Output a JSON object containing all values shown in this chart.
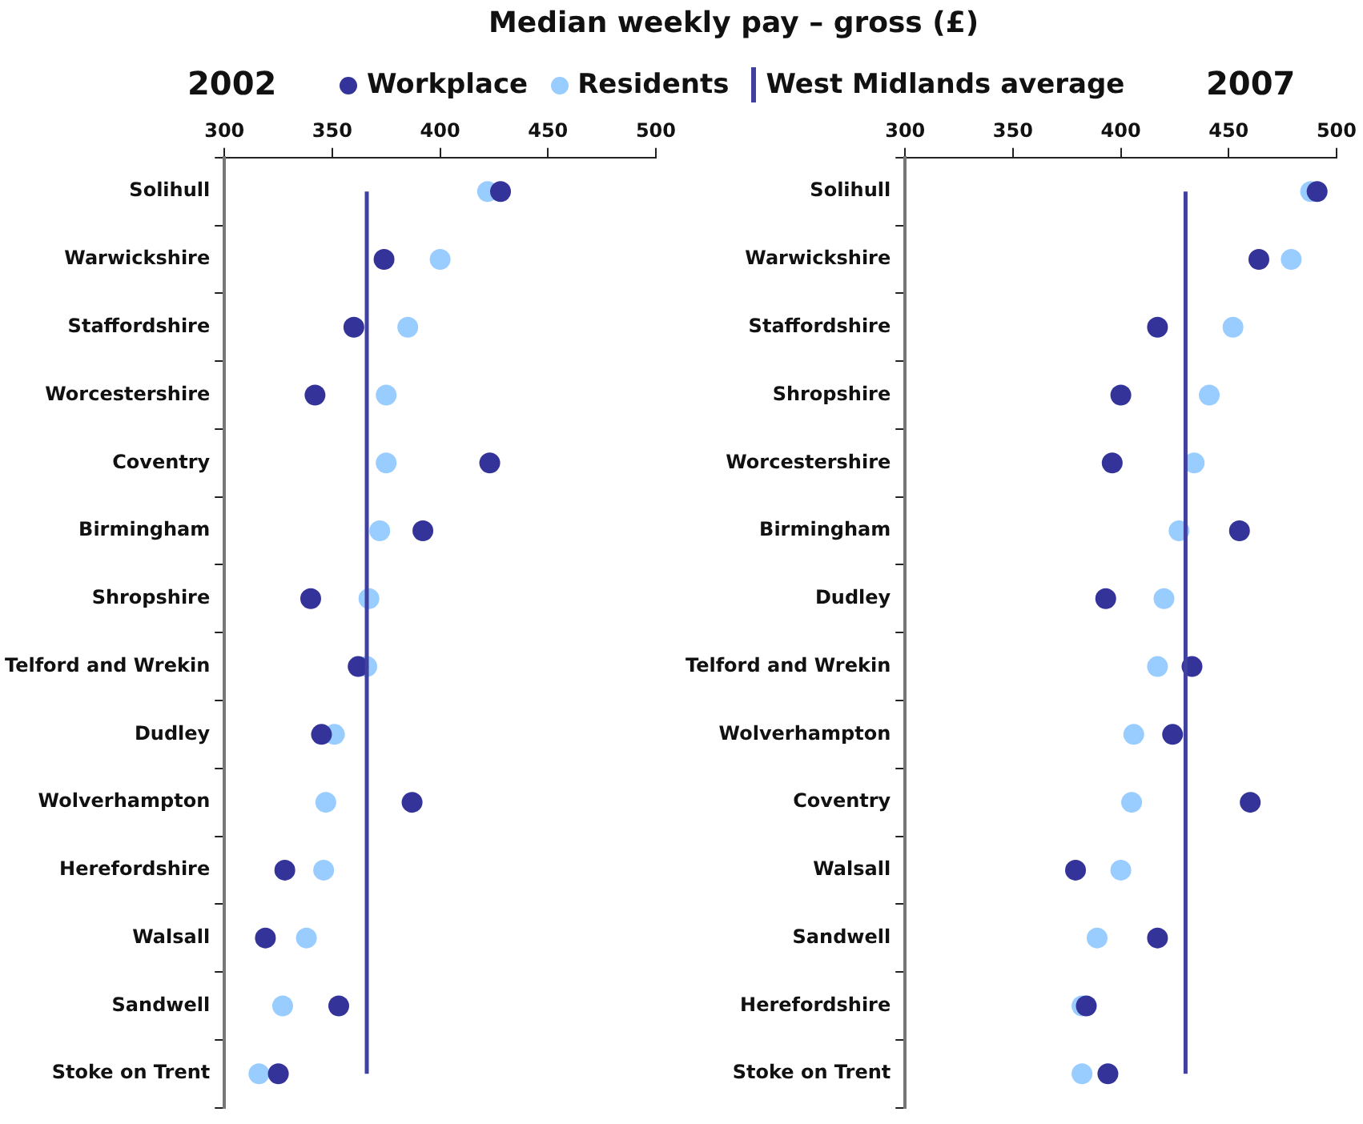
{
  "chart_data": [
    {
      "type": "scatter",
      "orientation": "horizontal",
      "title": "Median weekly pay – gross (£)",
      "subtitle": "2002",
      "legend": "top",
      "marker": "circle",
      "grid": false,
      "categories": [
        "Solihull",
        "Warwickshire",
        "Staffordshire",
        "Worcestershire",
        "Coventry",
        "Birmingham",
        "Shropshire",
        "Telford and Wrekin",
        "Dudley",
        "Wolverhampton",
        "Herefordshire",
        "Walsall",
        "Sandwell",
        "Stoke on Trent"
      ],
      "xlim": [
        300,
        500
      ],
      "xticks": [
        300,
        350,
        400,
        450,
        500
      ],
      "series": [
        {
          "name": "Residents",
          "color": "#99ccff",
          "values": [
            422,
            400,
            385,
            375,
            375,
            372,
            367,
            366,
            351,
            347,
            346,
            338,
            327,
            316
          ]
        },
        {
          "name": "Workplace",
          "color": "#333399",
          "values": [
            428,
            374,
            360,
            342,
            423,
            392,
            340,
            362,
            345,
            387,
            328,
            319,
            353,
            325
          ]
        }
      ],
      "ref_lines": [
        {
          "axis": "x",
          "value": 366,
          "label": "West Midlands average",
          "color": "#4040a0"
        }
      ]
    },
    {
      "type": "scatter",
      "orientation": "horizontal",
      "title": "2007",
      "marker": "circle",
      "grid": false,
      "categories": [
        "Solihull",
        "Warwickshire",
        "Staffordshire",
        "Shropshire",
        "Worcestershire",
        "Birmingham",
        "Dudley",
        "Telford and Wrekin",
        "Wolverhampton",
        "Coventry",
        "Walsall",
        "Sandwell",
        "Herefordshire",
        "Stoke on Trent"
      ],
      "xlim": [
        300,
        500
      ],
      "xticks": [
        300,
        350,
        400,
        450,
        500
      ],
      "series": [
        {
          "color": "#99ccff",
          "values": [
            488,
            479,
            452,
            441,
            434,
            427,
            420,
            417,
            406,
            405,
            400,
            389,
            382,
            382
          ]
        },
        {
          "color": "#333399",
          "values": [
            491,
            464,
            417,
            400,
            396,
            455,
            393,
            433,
            424,
            460,
            379,
            417,
            384,
            394
          ]
        }
      ],
      "ref_lines": [
        {
          "axis": "x",
          "value": 430,
          "color": "#4040a0"
        }
      ]
    }
  ]
}
